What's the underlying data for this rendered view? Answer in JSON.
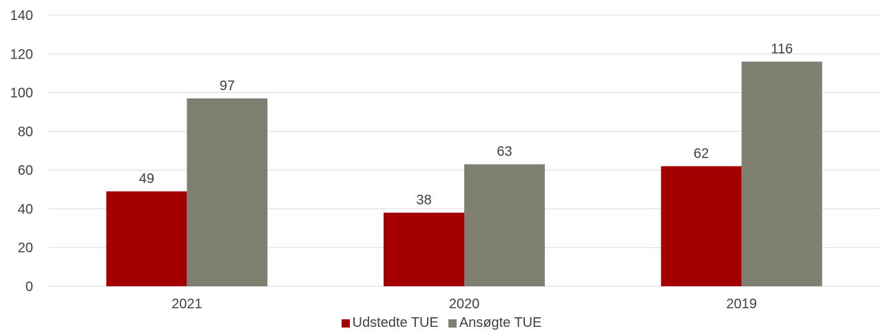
{
  "chart_data": {
    "type": "bar",
    "categories": [
      "2021",
      "2020",
      "2019"
    ],
    "series": [
      {
        "name": "Udstedte TUE",
        "values": [
          49,
          38,
          62
        ],
        "color": "#A50000"
      },
      {
        "name": "Ansøgte TUE",
        "values": [
          97,
          63,
          116
        ],
        "color": "#7F7F72"
      }
    ],
    "y_ticks": [
      "0",
      "20",
      "40",
      "60",
      "80",
      "100",
      "120",
      "140"
    ],
    "ylim": [
      0,
      140
    ],
    "grid": true,
    "legend_position": "bottom",
    "gridline_color": "#D9D9D9"
  }
}
